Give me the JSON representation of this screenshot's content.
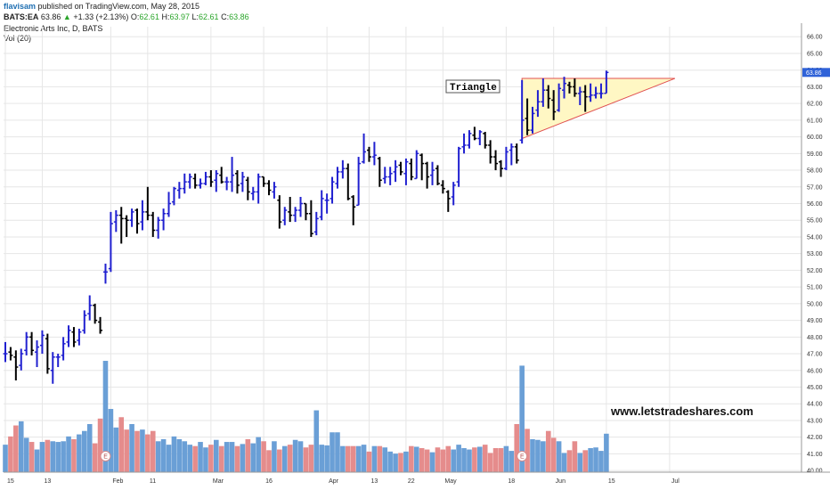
{
  "header": {
    "author": "flavisam",
    "published": "published on TradingView.com, May 28, 2015",
    "symbol": "BATS:EA",
    "last": "63.86",
    "change_arrow": "▲",
    "change": "+1.33 (+2.13%)",
    "o_label": "O:",
    "o_value": "62.61",
    "h_label": "H:",
    "h_value": "63.97",
    "l_label": "L:",
    "l_value": "62.61",
    "c_label": "C:",
    "c_value": "63.86",
    "title": "Electronic Arts Inc, D, BATS",
    "volume_label": "Vol (20)"
  },
  "colors": {
    "up_bar": "#2020d0",
    "down_bar": "#000000",
    "vol_up": "#6a9fd6",
    "vol_down": "#e58c8c",
    "triangle_fill": "#fff7c4",
    "triangle_stroke": "#e05050",
    "last_price_bg": "#2f62d8",
    "grid": "#e6e6e6"
  },
  "annotations": {
    "pattern_label": "Triangle",
    "watermark": "www.letstradeshares.com",
    "earnings_marker": "E"
  },
  "chart_data": {
    "type": "ohlc",
    "y_ticks": [
      "40.00",
      "41.00",
      "42.00",
      "43.00",
      "44.00",
      "45.00",
      "46.00",
      "47.00",
      "48.00",
      "49.00",
      "50.00",
      "51.00",
      "52.00",
      "53.00",
      "54.00",
      "55.00",
      "56.00",
      "57.00",
      "58.00",
      "59.00",
      "60.00",
      "61.00",
      "62.00",
      "63.00",
      "64.00",
      "65.00",
      "66.00"
    ],
    "ylim": [
      39.9,
      66.6
    ],
    "x_ticks": [
      {
        "label": "15",
        "index": 0
      },
      {
        "label": "13",
        "index": 7
      },
      {
        "label": "Feb",
        "index": 20
      },
      {
        "label": "11",
        "index": 27
      },
      {
        "label": "Mar",
        "index": 39
      },
      {
        "label": "16",
        "index": 49
      },
      {
        "label": "Apr",
        "index": 61
      },
      {
        "label": "13",
        "index": 69
      },
      {
        "label": "22",
        "index": 76
      },
      {
        "label": "May",
        "index": 83
      },
      {
        "label": "18",
        "index": 95
      },
      {
        "label": "Jun",
        "index": 104
      },
      {
        "label": "15",
        "index": 114
      },
      {
        "label": "Jul",
        "index": 126
      }
    ],
    "x_count": 132,
    "last_price": 63.86,
    "bars": [
      {
        "o": 47.0,
        "h": 47.7,
        "l": 46.5,
        "c": 47.0,
        "v": 40
      },
      {
        "o": 47.1,
        "h": 47.4,
        "l": 46.6,
        "c": 46.9,
        "v": 52
      },
      {
        "o": 46.8,
        "h": 47.2,
        "l": 45.4,
        "c": 46.2,
        "v": 68
      },
      {
        "o": 46.3,
        "h": 47.3,
        "l": 46.0,
        "c": 47.0,
        "v": 74
      },
      {
        "o": 47.2,
        "h": 48.3,
        "l": 46.9,
        "c": 48.0,
        "v": 50
      },
      {
        "o": 48.0,
        "h": 48.3,
        "l": 46.9,
        "c": 47.2,
        "v": 44
      },
      {
        "o": 47.1,
        "h": 47.8,
        "l": 46.2,
        "c": 47.4,
        "v": 33
      },
      {
        "o": 47.5,
        "h": 48.4,
        "l": 47.0,
        "c": 48.1,
        "v": 44
      },
      {
        "o": 47.9,
        "h": 48.2,
        "l": 45.8,
        "c": 46.1,
        "v": 47
      },
      {
        "o": 46.0,
        "h": 47.1,
        "l": 45.2,
        "c": 46.8,
        "v": 45
      },
      {
        "o": 46.8,
        "h": 47.0,
        "l": 46.2,
        "c": 46.8,
        "v": 44
      },
      {
        "o": 46.9,
        "h": 48.0,
        "l": 46.6,
        "c": 47.6,
        "v": 45
      },
      {
        "o": 47.7,
        "h": 48.7,
        "l": 47.4,
        "c": 48.4,
        "v": 52
      },
      {
        "o": 48.3,
        "h": 48.6,
        "l": 47.4,
        "c": 47.7,
        "v": 48
      },
      {
        "o": 47.8,
        "h": 48.5,
        "l": 47.5,
        "c": 48.3,
        "v": 55
      },
      {
        "o": 48.4,
        "h": 49.6,
        "l": 48.2,
        "c": 49.3,
        "v": 60
      },
      {
        "o": 49.4,
        "h": 50.5,
        "l": 49.0,
        "c": 49.9,
        "v": 70
      },
      {
        "o": 49.9,
        "h": 50.0,
        "l": 48.8,
        "c": 49.0,
        "v": 42
      },
      {
        "o": 48.9,
        "h": 49.2,
        "l": 48.2,
        "c": 48.4,
        "v": 78
      },
      {
        "o": 51.9,
        "h": 52.4,
        "l": 51.2,
        "c": 51.9,
        "v": 162
      },
      {
        "o": 52.1,
        "h": 55.5,
        "l": 51.9,
        "c": 54.8,
        "v": 92
      },
      {
        "o": 54.9,
        "h": 55.6,
        "l": 54.3,
        "c": 55.3,
        "v": 65
      },
      {
        "o": 55.3,
        "h": 55.8,
        "l": 53.6,
        "c": 55.1,
        "v": 80
      },
      {
        "o": 55.1,
        "h": 55.3,
        "l": 54.0,
        "c": 55.0,
        "v": 62
      },
      {
        "o": 55.0,
        "h": 55.7,
        "l": 54.6,
        "c": 55.5,
        "v": 70
      },
      {
        "o": 55.6,
        "h": 55.7,
        "l": 54.2,
        "c": 54.8,
        "v": 60
      },
      {
        "o": 54.9,
        "h": 56.2,
        "l": 54.4,
        "c": 55.5,
        "v": 62
      },
      {
        "o": 55.5,
        "h": 57.0,
        "l": 55.0,
        "c": 55.3,
        "v": 55
      },
      {
        "o": 55.3,
        "h": 55.5,
        "l": 54.0,
        "c": 54.4,
        "v": 60
      },
      {
        "o": 54.4,
        "h": 55.2,
        "l": 53.9,
        "c": 55.0,
        "v": 45
      },
      {
        "o": 55.0,
        "h": 55.7,
        "l": 54.4,
        "c": 55.4,
        "v": 48
      },
      {
        "o": 55.4,
        "h": 56.7,
        "l": 55.2,
        "c": 56.0,
        "v": 40
      },
      {
        "o": 56.1,
        "h": 57.0,
        "l": 55.9,
        "c": 56.9,
        "v": 52
      },
      {
        "o": 56.8,
        "h": 57.3,
        "l": 56.3,
        "c": 56.9,
        "v": 48
      },
      {
        "o": 56.9,
        "h": 57.8,
        "l": 56.6,
        "c": 57.3,
        "v": 45
      },
      {
        "o": 57.3,
        "h": 57.8,
        "l": 56.9,
        "c": 57.6,
        "v": 40
      },
      {
        "o": 57.5,
        "h": 57.8,
        "l": 56.9,
        "c": 57.1,
        "v": 38
      },
      {
        "o": 57.1,
        "h": 57.5,
        "l": 56.9,
        "c": 57.2,
        "v": 44
      },
      {
        "o": 57.2,
        "h": 57.9,
        "l": 57.1,
        "c": 57.6,
        "v": 36
      },
      {
        "o": 57.6,
        "h": 58.0,
        "l": 57.0,
        "c": 57.3,
        "v": 40
      },
      {
        "o": 57.4,
        "h": 58.0,
        "l": 56.7,
        "c": 57.8,
        "v": 47
      },
      {
        "o": 57.7,
        "h": 58.2,
        "l": 57.2,
        "c": 57.3,
        "v": 38
      },
      {
        "o": 57.3,
        "h": 57.6,
        "l": 56.8,
        "c": 57.3,
        "v": 44
      },
      {
        "o": 57.3,
        "h": 58.8,
        "l": 56.7,
        "c": 57.7,
        "v": 44
      },
      {
        "o": 57.8,
        "h": 58.0,
        "l": 56.6,
        "c": 57.1,
        "v": 38
      },
      {
        "o": 57.2,
        "h": 57.9,
        "l": 56.7,
        "c": 57.6,
        "v": 41
      },
      {
        "o": 57.4,
        "h": 57.6,
        "l": 56.2,
        "c": 56.7,
        "v": 48
      },
      {
        "o": 56.6,
        "h": 57.0,
        "l": 56.2,
        "c": 56.7,
        "v": 42
      },
      {
        "o": 56.7,
        "h": 57.8,
        "l": 56.0,
        "c": 57.6,
        "v": 51
      },
      {
        "o": 57.6,
        "h": 57.6,
        "l": 57.0,
        "c": 57.2,
        "v": 45
      },
      {
        "o": 57.2,
        "h": 57.4,
        "l": 56.5,
        "c": 56.8,
        "v": 32
      },
      {
        "o": 56.7,
        "h": 57.3,
        "l": 56.3,
        "c": 57.0,
        "v": 45
      },
      {
        "o": 56.2,
        "h": 56.5,
        "l": 54.5,
        "c": 54.9,
        "v": 33
      },
      {
        "o": 55.0,
        "h": 55.8,
        "l": 54.7,
        "c": 55.6,
        "v": 38
      },
      {
        "o": 55.5,
        "h": 56.4,
        "l": 54.9,
        "c": 55.3,
        "v": 40
      },
      {
        "o": 55.3,
        "h": 55.8,
        "l": 54.9,
        "c": 55.6,
        "v": 47
      },
      {
        "o": 55.6,
        "h": 56.4,
        "l": 55.2,
        "c": 56.0,
        "v": 45
      },
      {
        "o": 56.0,
        "h": 56.0,
        "l": 55.0,
        "c": 55.4,
        "v": 36
      },
      {
        "o": 55.4,
        "h": 56.2,
        "l": 54.0,
        "c": 54.2,
        "v": 40
      },
      {
        "o": 54.3,
        "h": 55.5,
        "l": 54.1,
        "c": 55.1,
        "v": 90
      },
      {
        "o": 55.2,
        "h": 56.8,
        "l": 55.0,
        "c": 56.3,
        "v": 40
      },
      {
        "o": 56.2,
        "h": 56.6,
        "l": 55.4,
        "c": 56.2,
        "v": 39
      },
      {
        "o": 56.3,
        "h": 57.6,
        "l": 56.0,
        "c": 57.3,
        "v": 58
      },
      {
        "o": 57.2,
        "h": 58.2,
        "l": 56.9,
        "c": 57.9,
        "v": 58
      },
      {
        "o": 57.9,
        "h": 58.6,
        "l": 57.5,
        "c": 58.1,
        "v": 38
      },
      {
        "o": 58.1,
        "h": 58.4,
        "l": 56.2,
        "c": 56.3,
        "v": 38
      },
      {
        "o": 56.4,
        "h": 56.5,
        "l": 54.7,
        "c": 55.8,
        "v": 38
      },
      {
        "o": 55.9,
        "h": 58.8,
        "l": 55.9,
        "c": 58.4,
        "v": 38
      },
      {
        "o": 58.5,
        "h": 60.2,
        "l": 58.4,
        "c": 59.1,
        "v": 40
      },
      {
        "o": 59.2,
        "h": 59.4,
        "l": 58.5,
        "c": 58.8,
        "v": 30
      },
      {
        "o": 58.8,
        "h": 59.7,
        "l": 58.3,
        "c": 58.9,
        "v": 38
      },
      {
        "o": 58.7,
        "h": 58.8,
        "l": 57.0,
        "c": 57.4,
        "v": 38
      },
      {
        "o": 57.5,
        "h": 58.2,
        "l": 57.2,
        "c": 57.6,
        "v": 36
      },
      {
        "o": 57.6,
        "h": 58.2,
        "l": 57.1,
        "c": 57.8,
        "v": 30
      },
      {
        "o": 57.9,
        "h": 58.6,
        "l": 57.3,
        "c": 58.2,
        "v": 27
      },
      {
        "o": 58.3,
        "h": 58.5,
        "l": 57.7,
        "c": 57.9,
        "v": 28
      },
      {
        "o": 57.8,
        "h": 58.7,
        "l": 57.1,
        "c": 58.5,
        "v": 30
      },
      {
        "o": 58.4,
        "h": 58.7,
        "l": 57.4,
        "c": 57.6,
        "v": 38
      },
      {
        "o": 57.5,
        "h": 59.2,
        "l": 57.5,
        "c": 59.0,
        "v": 37
      },
      {
        "o": 58.9,
        "h": 59.0,
        "l": 57.4,
        "c": 58.4,
        "v": 35
      },
      {
        "o": 58.4,
        "h": 58.5,
        "l": 56.9,
        "c": 57.6,
        "v": 33
      },
      {
        "o": 57.7,
        "h": 58.5,
        "l": 57.1,
        "c": 58.0,
        "v": 29
      },
      {
        "o": 58.1,
        "h": 58.3,
        "l": 57.1,
        "c": 57.2,
        "v": 36
      },
      {
        "o": 57.1,
        "h": 57.4,
        "l": 56.6,
        "c": 56.9,
        "v": 33
      },
      {
        "o": 56.7,
        "h": 56.8,
        "l": 55.5,
        "c": 56.3,
        "v": 38
      },
      {
        "o": 56.4,
        "h": 57.3,
        "l": 55.9,
        "c": 57.1,
        "v": 33
      },
      {
        "o": 57.3,
        "h": 59.4,
        "l": 57.0,
        "c": 59.3,
        "v": 40
      },
      {
        "o": 59.4,
        "h": 60.2,
        "l": 59.0,
        "c": 59.5,
        "v": 35
      },
      {
        "o": 59.5,
        "h": 60.4,
        "l": 59.3,
        "c": 60.2,
        "v": 33
      },
      {
        "o": 60.1,
        "h": 60.6,
        "l": 59.8,
        "c": 59.9,
        "v": 36
      },
      {
        "o": 59.9,
        "h": 60.4,
        "l": 59.5,
        "c": 60.3,
        "v": 37
      },
      {
        "o": 60.2,
        "h": 60.3,
        "l": 59.3,
        "c": 59.5,
        "v": 40
      },
      {
        "o": 59.5,
        "h": 59.8,
        "l": 58.4,
        "c": 58.8,
        "v": 28
      },
      {
        "o": 58.8,
        "h": 59.2,
        "l": 58.0,
        "c": 58.4,
        "v": 35
      },
      {
        "o": 58.5,
        "h": 58.6,
        "l": 57.6,
        "c": 58.1,
        "v": 35
      },
      {
        "o": 58.1,
        "h": 59.4,
        "l": 58.0,
        "c": 59.1,
        "v": 38
      },
      {
        "o": 59.2,
        "h": 59.6,
        "l": 58.3,
        "c": 59.4,
        "v": 31
      },
      {
        "o": 59.4,
        "h": 59.6,
        "l": 58.4,
        "c": 58.6,
        "v": 70
      },
      {
        "o": 59.8,
        "h": 63.4,
        "l": 59.6,
        "c": 61.0,
        "v": 155
      },
      {
        "o": 61.1,
        "h": 62.3,
        "l": 60.1,
        "c": 60.4,
        "v": 63
      },
      {
        "o": 60.4,
        "h": 61.8,
        "l": 60.2,
        "c": 61.4,
        "v": 48
      },
      {
        "o": 61.6,
        "h": 62.8,
        "l": 61.2,
        "c": 62.1,
        "v": 47
      },
      {
        "o": 62.1,
        "h": 63.5,
        "l": 61.8,
        "c": 62.8,
        "v": 45
      },
      {
        "o": 62.8,
        "h": 63.1,
        "l": 61.7,
        "c": 62.3,
        "v": 60
      },
      {
        "o": 62.2,
        "h": 62.8,
        "l": 61.0,
        "c": 61.5,
        "v": 50
      },
      {
        "o": 61.6,
        "h": 63.2,
        "l": 61.5,
        "c": 62.9,
        "v": 45
      },
      {
        "o": 62.8,
        "h": 63.6,
        "l": 62.3,
        "c": 63.2,
        "v": 28
      },
      {
        "o": 63.1,
        "h": 63.3,
        "l": 62.6,
        "c": 63.0,
        "v": 32
      },
      {
        "o": 63.0,
        "h": 63.5,
        "l": 62.4,
        "c": 62.6,
        "v": 45
      },
      {
        "o": 62.6,
        "h": 63.0,
        "l": 61.9,
        "c": 62.7,
        "v": 28
      },
      {
        "o": 62.7,
        "h": 63.1,
        "l": 61.5,
        "c": 62.4,
        "v": 32
      },
      {
        "o": 62.4,
        "h": 63.2,
        "l": 62.1,
        "c": 62.5,
        "v": 35
      },
      {
        "o": 62.5,
        "h": 63.0,
        "l": 62.3,
        "c": 62.6,
        "v": 36
      },
      {
        "o": 62.6,
        "h": 63.2,
        "l": 62.3,
        "c": 62.6,
        "v": 31
      },
      {
        "o": 62.61,
        "h": 63.97,
        "l": 62.61,
        "c": 63.86,
        "v": 56
      }
    ],
    "triangle": {
      "top_left": [
        98,
        63.5
      ],
      "top_right": [
        127,
        63.5
      ],
      "bottom_left": [
        98,
        59.9
      ]
    },
    "earnings_markers": [
      19,
      98
    ]
  }
}
